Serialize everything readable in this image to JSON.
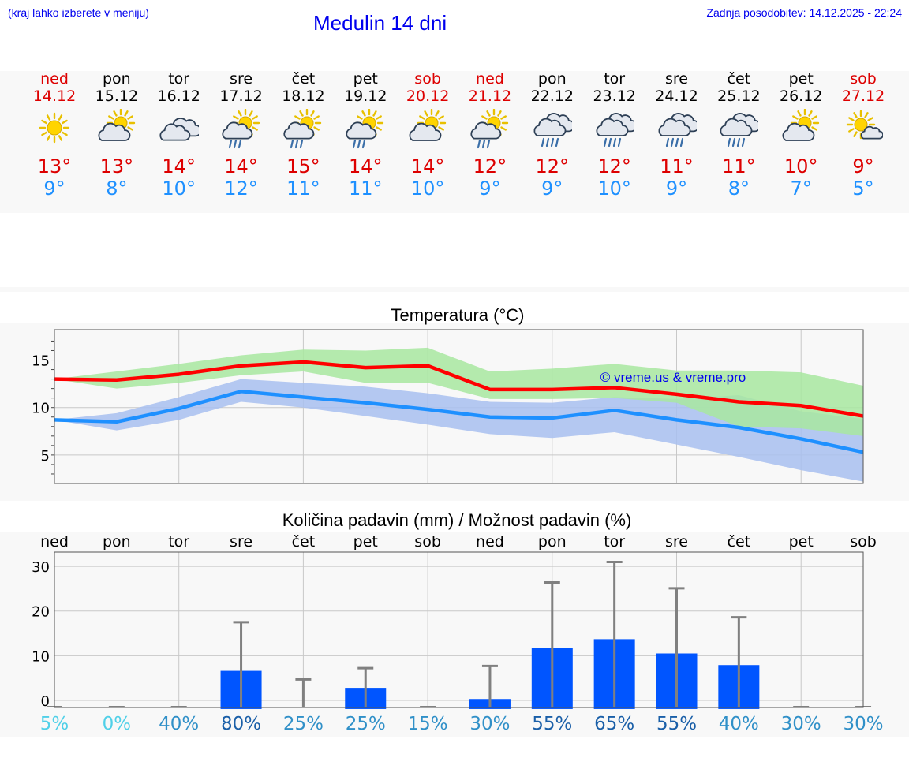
{
  "header": {
    "hint": "(kraj lahko izberete v meniju)",
    "title": "Medulin 14 dni",
    "updated": "Zadnja posodobitev: 14.12.2025 - 22:24"
  },
  "colors": {
    "weekend": "#dd0000",
    "weekday": "#000000",
    "max": "#ff0000",
    "min": "#1e90ff",
    "max_band": "#a8e8a0",
    "min_band": "#a8c0f0",
    "bar": "#0055ff",
    "error": "#808080"
  },
  "days": [
    {
      "name": "ned",
      "date": "14.12",
      "weekend": true,
      "icon": "sun-cloud-icon",
      "tmax": "13°",
      "tmin": "9°"
    },
    {
      "name": "pon",
      "date": "15.12",
      "weekend": false,
      "icon": "cloud-sun-icon",
      "tmax": "13°",
      "tmin": "8°"
    },
    {
      "name": "tor",
      "date": "16.12",
      "weekend": false,
      "icon": "cloudy-icon",
      "tmax": "14°",
      "tmin": "10°"
    },
    {
      "name": "sre",
      "date": "17.12",
      "weekend": false,
      "icon": "sun-rain-icon",
      "tmax": "14°",
      "tmin": "12°"
    },
    {
      "name": "čet",
      "date": "18.12",
      "weekend": false,
      "icon": "sun-rain-icon",
      "tmax": "15°",
      "tmin": "11°"
    },
    {
      "name": "pet",
      "date": "19.12",
      "weekend": false,
      "icon": "sun-rain-icon",
      "tmax": "14°",
      "tmin": "11°"
    },
    {
      "name": "sob",
      "date": "20.12",
      "weekend": true,
      "icon": "cloud-sun-icon",
      "tmax": "14°",
      "tmin": "10°"
    },
    {
      "name": "ned",
      "date": "21.12",
      "weekend": true,
      "icon": "sun-rain-icon",
      "tmax": "12°",
      "tmin": "9°"
    },
    {
      "name": "pon",
      "date": "22.12",
      "weekend": false,
      "icon": "cloud-rain-icon",
      "tmax": "12°",
      "tmin": "9°"
    },
    {
      "name": "tor",
      "date": "23.12",
      "weekend": false,
      "icon": "cloud-rain-icon",
      "tmax": "12°",
      "tmin": "10°"
    },
    {
      "name": "sre",
      "date": "24.12",
      "weekend": false,
      "icon": "cloud-rain-icon",
      "tmax": "11°",
      "tmin": "9°"
    },
    {
      "name": "čet",
      "date": "25.12",
      "weekend": false,
      "icon": "cloud-rain-icon",
      "tmax": "11°",
      "tmin": "8°"
    },
    {
      "name": "pet",
      "date": "26.12",
      "weekend": false,
      "icon": "cloud-sun-icon",
      "tmax": "10°",
      "tmin": "7°"
    },
    {
      "name": "sob",
      "date": "27.12",
      "weekend": true,
      "icon": "sun-small-cloud-icon",
      "tmax": "9°",
      "tmin": "5°"
    }
  ],
  "chart_data": [
    {
      "type": "line",
      "title": "Temperatura (°C)",
      "watermark": "© vreme.us & vreme.pro",
      "ylim": [
        2,
        18.2
      ],
      "yticks": [
        5,
        10,
        15
      ],
      "x": [
        0,
        1,
        2,
        3,
        4,
        5,
        6,
        7,
        8,
        9,
        10,
        11,
        12,
        13
      ],
      "series": [
        {
          "name": "max",
          "values": [
            13.0,
            12.9,
            13.5,
            14.4,
            14.8,
            14.2,
            14.4,
            11.9,
            11.9,
            12.1,
            11.4,
            10.6,
            10.2,
            9.1
          ],
          "band_low": [
            13.0,
            12.0,
            12.6,
            13.4,
            13.8,
            12.6,
            12.6,
            10.9,
            10.9,
            11.0,
            10.5,
            8.0,
            7.8,
            7.0
          ],
          "band_high": [
            13.0,
            13.8,
            14.6,
            15.5,
            16.1,
            16.0,
            16.3,
            13.8,
            14.1,
            14.6,
            13.9,
            13.9,
            13.7,
            12.3
          ]
        },
        {
          "name": "min",
          "values": [
            8.7,
            8.5,
            9.9,
            11.7,
            11.1,
            10.5,
            9.8,
            9.0,
            8.9,
            9.7,
            8.7,
            7.9,
            6.7,
            5.3
          ],
          "band_low": [
            8.7,
            7.6,
            8.7,
            10.6,
            10.0,
            9.1,
            8.2,
            7.2,
            6.8,
            7.4,
            6.1,
            4.8,
            3.4,
            2.2
          ],
          "band_high": [
            8.7,
            9.4,
            11.1,
            13.0,
            12.6,
            12.2,
            11.5,
            10.6,
            10.5,
            11.1,
            10.9,
            11.3,
            9.6,
            8.8
          ]
        }
      ]
    },
    {
      "type": "bar",
      "title": "Količina padavin (mm) / Možnost padavin (%)",
      "ylim": [
        -1.6,
        33.2
      ],
      "yticks": [
        0,
        10,
        20,
        30
      ],
      "categories": [
        "ned",
        "pon",
        "tor",
        "sre",
        "čet",
        "pet",
        "sob",
        "ned",
        "pon",
        "tor",
        "sre",
        "čet",
        "pet",
        "sob"
      ],
      "values": [
        0,
        0,
        0,
        6.6,
        0,
        2.8,
        0,
        0.3,
        11.7,
        13.7,
        10.5,
        7.9,
        0,
        0
      ],
      "error_high": [
        0,
        0,
        0,
        17.5,
        4.7,
        7.2,
        0,
        7.7,
        26.4,
        31.0,
        25.1,
        18.6,
        0,
        0
      ],
      "probability": [
        "5%",
        "0%",
        "40%",
        "80%",
        "25%",
        "25%",
        "15%",
        "30%",
        "55%",
        "65%",
        "55%",
        "40%",
        "30%",
        "30%"
      ],
      "probability_colors": [
        "#50d0e8",
        "#50d0e8",
        "#3090c8",
        "#1a5fa8",
        "#3090c8",
        "#3090c8",
        "#3090c8",
        "#3090c8",
        "#1a5fa8",
        "#1a5fa8",
        "#1a5fa8",
        "#3090c8",
        "#3090c8",
        "#3090c8"
      ]
    }
  ]
}
